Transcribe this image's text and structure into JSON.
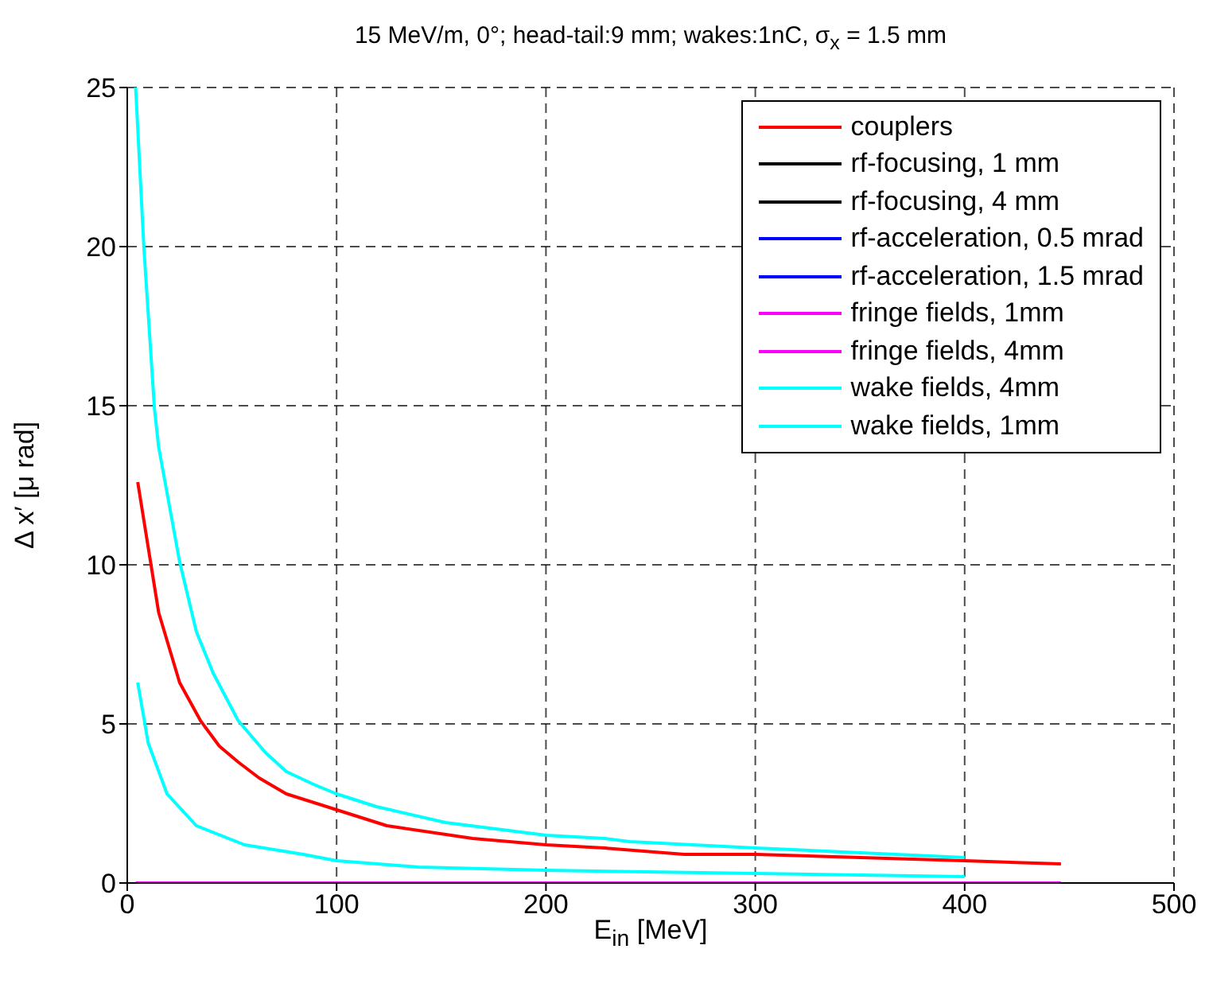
{
  "chart_data": {
    "type": "line",
    "title": "15 MeV/m, 0°; head-tail:9 mm; wakes:1nC, σ$_{x}$ = 1.5 mm",
    "xlabel": "E$_{in}$ [MeV]",
    "ylabel": "Δ x′ [μ rad]",
    "xlim": [
      0,
      500
    ],
    "xticks": [
      0,
      100,
      200,
      300,
      400,
      500
    ],
    "ylim": [
      0,
      25
    ],
    "yticks": [
      0,
      5,
      10,
      15,
      20,
      25
    ],
    "grid": true,
    "legend": "top right",
    "marker": "none",
    "line_style": "solid",
    "series": [
      {
        "name": "couplers",
        "color": "#ff0000",
        "x": [
          5,
          15,
          25,
          35,
          44,
          53,
          63,
          76,
          100,
          124,
          165,
          200,
          228,
          266,
          300,
          400,
          446
        ],
        "values": [
          12.6,
          8.5,
          6.3,
          5.1,
          4.3,
          3.8,
          3.3,
          2.8,
          2.3,
          1.8,
          1.4,
          1.2,
          1.1,
          0.9,
          0.9,
          0.7,
          0.6
        ]
      },
      {
        "name": "rf-focusing, 1 mm",
        "color": "#000000"
      },
      {
        "name": "rf-focusing, 4 mm",
        "color": "#000000"
      },
      {
        "name": "rf-acceleration, 0.5 mrad",
        "color": "#0000ff"
      },
      {
        "name": "rf-acceleration, 1.5 mrad",
        "color": "#0000ff"
      },
      {
        "name": "fringe fields, 1mm",
        "color": "#ff00ff"
      },
      {
        "name": "fringe fields, 4mm",
        "color": "#ff00ff",
        "x": [
          4,
          446
        ],
        "values": [
          0,
          0
        ]
      },
      {
        "name": "wake fields, 4mm",
        "color": "#00ffff",
        "x": [
          4,
          8,
          13,
          15,
          25,
          33,
          41,
          53,
          66,
          76,
          89,
          100,
          119,
          152,
          200,
          228,
          240,
          300,
          400
        ],
        "values": [
          25,
          19.9,
          14.9,
          13.7,
          10.1,
          7.9,
          6.6,
          5.1,
          4.1,
          3.5,
          3.1,
          2.8,
          2.4,
          1.9,
          1.5,
          1.4,
          1.3,
          1.1,
          0.8
        ]
      },
      {
        "name": "wake fields, 1mm",
        "color": "#00ffff",
        "x": [
          5,
          10,
          19,
          33,
          56,
          84,
          100,
          139,
          200,
          300,
          400
        ],
        "values": [
          6.3,
          4.4,
          2.8,
          1.8,
          1.2,
          0.9,
          0.7,
          0.5,
          0.4,
          0.3,
          0.2
        ]
      }
    ]
  }
}
